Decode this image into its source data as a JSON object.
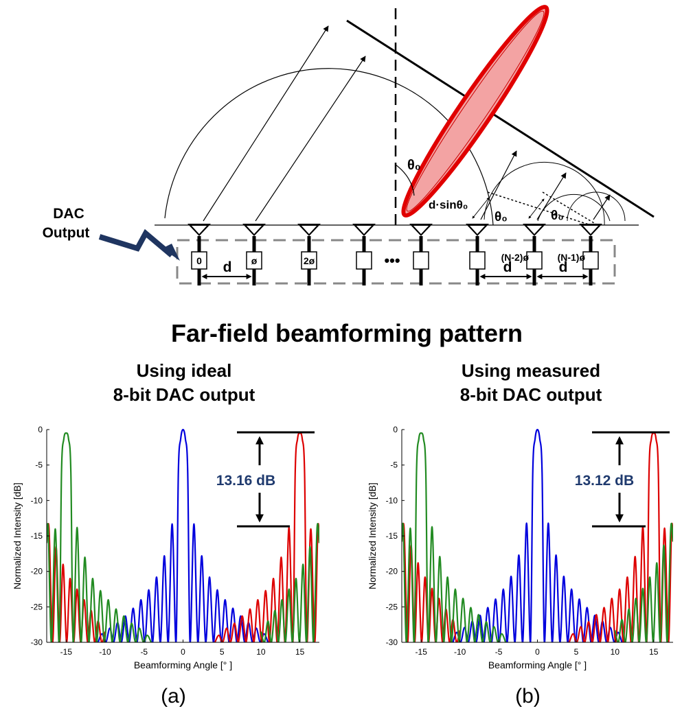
{
  "diagram": {
    "dac_label": [
      "DAC",
      "Output"
    ],
    "d": "d",
    "box_labels": [
      "0",
      "ø",
      "2ø",
      "(N-2)ø",
      "(N-1)ø"
    ],
    "dots": "•••",
    "theta": "θ₀",
    "dsin": "d·sinθ₀"
  },
  "title": "Far-field beamforming pattern",
  "chart_data": [
    {
      "type": "line",
      "subtitle": [
        "Using ideal",
        "8-bit DAC output"
      ],
      "panel": "(a)",
      "x_label": "Beamforming Angle [° ]",
      "y_label": "Normalized Intensity [dB]",
      "annotation": "13.16 dB",
      "xlim": [
        -17.5,
        17.5
      ],
      "ylim": [
        -30,
        0
      ],
      "xticks": [
        -15,
        -10,
        -5,
        0,
        5,
        10,
        15
      ],
      "yticks": [
        -30,
        -25,
        -20,
        -15,
        -10,
        -5,
        0
      ],
      "series": [
        {
          "color": "#0000dd",
          "x": [
            -10.9,
            -10.4,
            -9.9,
            -9.4,
            -8.9,
            -8.4,
            -7.9,
            -7.4,
            -6.9,
            -6.4,
            -5.9,
            -5.4,
            -4.9,
            -4.4,
            -3.9,
            -3.4,
            -2.9,
            -2.4,
            -1.9,
            -1.4,
            -0.9,
            -0.6,
            -0.3,
            0,
            0.3,
            0.6,
            0.9,
            1.4,
            1.9,
            2.4,
            2.9,
            3.4,
            3.9,
            4.4,
            4.9,
            5.4,
            5.9,
            6.4,
            6.9,
            7.4,
            7.9,
            8.4,
            8.9,
            9.4,
            9.9,
            10.4,
            10.9
          ],
          "values": [
            -30,
            -28.8,
            -30,
            -28,
            -30,
            -27.2,
            -30,
            -26.3,
            -30,
            -25.2,
            -30,
            -24,
            -30,
            -22.6,
            -30,
            -20.8,
            -30,
            -17.8,
            -30,
            -13.3,
            -30,
            -6,
            -1.3,
            0,
            -1.3,
            -6,
            -30,
            -13.3,
            -30,
            -17.8,
            -30,
            -20.8,
            -30,
            -22.6,
            -30,
            -24,
            -30,
            -25.2,
            -30,
            -26.3,
            -30,
            -27.2,
            -30,
            -28,
            -30,
            -28.8,
            -30
          ]
        },
        {
          "color": "#dd0000",
          "x": [
            -17.5,
            -17.2,
            -16.75,
            -16.3,
            -15.85,
            -15.4,
            -14.95,
            -14.5,
            -14.05,
            -13.6,
            -13.15,
            -12.7,
            -12.25,
            -11.8,
            -11.35,
            -10.9,
            -10.45,
            -10,
            null,
            4.1,
            4.6,
            5.1,
            5.6,
            6.1,
            6.6,
            7.1,
            7.6,
            8.1,
            8.6,
            9.1,
            9.6,
            10.1,
            10.6,
            11.1,
            11.6,
            12.1,
            12.6,
            13.1,
            13.6,
            14.1,
            14.4,
            14.7,
            15,
            15.3,
            15.6,
            15.9,
            16.4,
            16.9,
            17.3,
            17.5
          ],
          "values": [
            -16,
            -14,
            -30,
            -16.5,
            -30,
            -19,
            -30,
            -21,
            -30,
            -22.5,
            -30,
            -24,
            -30,
            -25.5,
            -30,
            -27,
            -30,
            -28.5,
            null,
            -30,
            -29,
            -30,
            -28,
            -30,
            -27.3,
            -30,
            -26.3,
            -30,
            -25.3,
            -30,
            -24,
            -30,
            -22.7,
            -30,
            -21,
            -30,
            -18,
            -30,
            -13.8,
            -30,
            -6,
            -1.3,
            -0.5,
            -1.3,
            -6,
            -30,
            -14,
            -30,
            -14,
            -16
          ]
        },
        {
          "color": "#228b22",
          "x": [
            -17.5,
            -17.3,
            -16.9,
            -16.4,
            -15.9,
            -15.6,
            -15.3,
            -15,
            -14.7,
            -14.4,
            -14.1,
            -13.6,
            -13.1,
            -12.6,
            -12.1,
            -11.6,
            -11.1,
            -10.6,
            -10.1,
            -9.6,
            -9.1,
            -8.6,
            -8.1,
            -7.6,
            -7.1,
            -6.6,
            -6.1,
            -5.6,
            -5.1,
            -4.6,
            -4.1,
            null,
            10,
            10.45,
            10.9,
            11.35,
            11.8,
            12.25,
            12.7,
            13.15,
            13.6,
            14.05,
            14.5,
            14.95,
            15.4,
            15.85,
            16.3,
            16.75,
            17.2,
            17.5
          ],
          "values": [
            -16,
            -14,
            -30,
            -14,
            -30,
            -6,
            -1.3,
            -0.5,
            -1.3,
            -6,
            -30,
            -13.8,
            -30,
            -18,
            -30,
            -21,
            -30,
            -22.7,
            -30,
            -24,
            -30,
            -25.3,
            -30,
            -26.3,
            -30,
            -27.3,
            -30,
            -28,
            -30,
            -29,
            -30,
            null,
            -28.5,
            -30,
            -27,
            -30,
            -25.5,
            -30,
            -24,
            -30,
            -22.5,
            -30,
            -21,
            -30,
            -19,
            -30,
            -16.5,
            -30,
            -14,
            -16
          ]
        }
      ]
    },
    {
      "type": "line",
      "subtitle": [
        "Using measured",
        "8-bit DAC output"
      ],
      "panel": "(b)",
      "x_label": "Beamforming Angle [° ]",
      "y_label": "Normalized Intensity [dB]",
      "annotation": "13.12 dB",
      "xlim": [
        -17.5,
        17.5
      ],
      "ylim": [
        -30,
        0
      ],
      "xticks": [
        -15,
        -10,
        -5,
        0,
        5,
        10,
        15
      ],
      "yticks": [
        -30,
        -25,
        -20,
        -15,
        -10,
        -5,
        0
      ],
      "series": [
        {
          "color": "#0000dd",
          "x": [
            -10.9,
            -10.4,
            -9.9,
            -9.4,
            -8.9,
            -8.4,
            -7.9,
            -7.4,
            -6.9,
            -6.4,
            -5.9,
            -5.4,
            -4.9,
            -4.4,
            -3.9,
            -3.4,
            -2.9,
            -2.4,
            -1.9,
            -1.4,
            -0.9,
            -0.6,
            -0.3,
            0,
            0.3,
            0.6,
            0.9,
            1.4,
            1.9,
            2.4,
            2.9,
            3.4,
            3.9,
            4.4,
            4.9,
            5.4,
            5.9,
            6.4,
            6.9,
            7.4,
            7.9,
            8.4,
            8.9,
            9.4,
            9.9,
            10.4,
            10.9
          ],
          "values": [
            -30,
            -28.6,
            -30,
            -27.9,
            -30,
            -27,
            -30,
            -26.2,
            -30,
            -25.1,
            -30,
            -23.9,
            -30,
            -22.5,
            -30,
            -20.7,
            -30,
            -17.7,
            -30,
            -13.2,
            -30,
            -6,
            -1.3,
            0,
            -1.3,
            -6,
            -30,
            -13.2,
            -30,
            -17.7,
            -30,
            -20.7,
            -30,
            -22.5,
            -30,
            -23.9,
            -30,
            -25.1,
            -30,
            -26.2,
            -30,
            -27,
            -30,
            -27.9,
            -30,
            -28.6,
            -30
          ]
        },
        {
          "color": "#dd0000",
          "x": [
            -17.5,
            -17.2,
            -16.75,
            -16.3,
            -15.85,
            -15.4,
            -14.95,
            -14.5,
            -14.05,
            -13.6,
            -13.15,
            -12.7,
            -12.25,
            -11.8,
            -11.35,
            -10.9,
            -10.45,
            -10,
            null,
            4.1,
            4.6,
            5.1,
            5.6,
            6.1,
            6.6,
            7.1,
            7.6,
            8.1,
            8.6,
            9.1,
            9.6,
            10.1,
            10.6,
            11.1,
            11.6,
            12.1,
            12.6,
            13.1,
            13.6,
            14.1,
            14.4,
            14.7,
            15,
            15.3,
            15.6,
            15.9,
            16.4,
            16.9,
            17.3,
            17.5
          ],
          "values": [
            -15.8,
            -14,
            -30,
            -16.3,
            -30,
            -18.8,
            -30,
            -20.8,
            -30,
            -22.4,
            -30,
            -23.8,
            -30,
            -25.3,
            -30,
            -26.8,
            -30,
            -28.3,
            null,
            -30,
            -28.8,
            -30,
            -27.8,
            -30,
            -27.1,
            -30,
            -26.1,
            -30,
            -25.1,
            -30,
            -23.8,
            -30,
            -22.5,
            -30,
            -20.8,
            -30,
            -17.9,
            -30,
            -13.7,
            -30,
            -6,
            -1.3,
            -0.5,
            -1.3,
            -6,
            -30,
            -13.9,
            -30,
            -14,
            -15.8
          ]
        },
        {
          "color": "#228b22",
          "x": [
            -17.5,
            -17.3,
            -16.9,
            -16.4,
            -15.9,
            -15.6,
            -15.3,
            -15,
            -14.7,
            -14.4,
            -14.1,
            -13.6,
            -13.1,
            -12.6,
            -12.1,
            -11.6,
            -11.1,
            -10.6,
            -10.1,
            -9.6,
            -9.1,
            -8.6,
            -8.1,
            -7.6,
            -7.1,
            -6.6,
            -6.1,
            -5.6,
            -5.1,
            -4.6,
            -4.1,
            null,
            10,
            10.45,
            10.9,
            11.35,
            11.8,
            12.25,
            12.7,
            13.15,
            13.6,
            14.05,
            14.5,
            14.95,
            15.4,
            15.85,
            16.3,
            16.75,
            17.2,
            17.5
          ],
          "values": [
            -15.8,
            -14,
            -30,
            -13.9,
            -30,
            -6,
            -1.3,
            -0.5,
            -1.3,
            -6,
            -30,
            -13.7,
            -30,
            -17.9,
            -30,
            -20.8,
            -30,
            -22.5,
            -30,
            -23.8,
            -30,
            -25.1,
            -30,
            -26.1,
            -30,
            -27.1,
            -30,
            -27.8,
            -30,
            -28.8,
            -30,
            null,
            -28.3,
            -30,
            -26.8,
            -30,
            -25.3,
            -30,
            -23.8,
            -30,
            -22.4,
            -30,
            -20.8,
            -30,
            -18.8,
            -30,
            -16.3,
            -30,
            -14,
            -15.8
          ]
        }
      ]
    }
  ]
}
